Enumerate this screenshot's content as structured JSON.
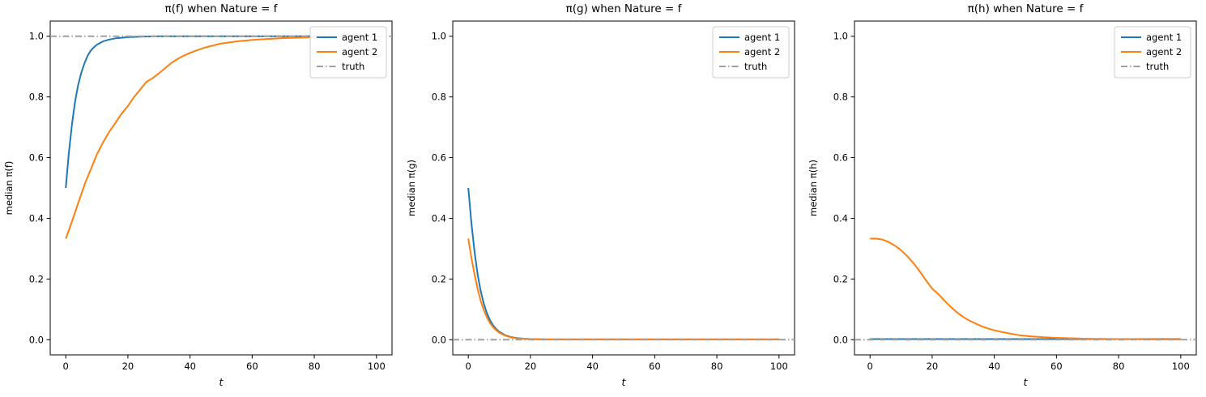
{
  "figure": {
    "background": "#ffffff",
    "axis_color": "#000000",
    "legend_border_color": "#cccccc",
    "legend_background": "#ffffff"
  },
  "chart_data": [
    {
      "type": "line",
      "title": "π(f) when Nature = f",
      "xlabel": "t",
      "ylabel": "median π(f)",
      "xlim": [
        -5,
        105
      ],
      "ylim": [
        -0.05,
        1.05
      ],
      "xticks": [
        0,
        20,
        40,
        60,
        80,
        100
      ],
      "xticklabels": [
        "0",
        "20",
        "40",
        "60",
        "80",
        "100"
      ],
      "yticks": [
        0.0,
        0.2,
        0.4,
        0.6,
        0.8,
        1.0
      ],
      "yticklabels": [
        "0.0",
        "0.2",
        "0.4",
        "0.6",
        "0.8",
        "1.0"
      ],
      "grid": false,
      "legend": {
        "position": "upper right",
        "entries": [
          "agent 1",
          "agent 2",
          "truth"
        ]
      },
      "series": [
        {
          "name": "agent 1",
          "color": "#1f77b4",
          "dash": "",
          "x": [
            0,
            1,
            2,
            3,
            4,
            5,
            6,
            7,
            8,
            9,
            10,
            12,
            14,
            16,
            18,
            20,
            25,
            30,
            40,
            50,
            60,
            70,
            80,
            90,
            100
          ],
          "y": [
            0.5,
            0.615,
            0.71,
            0.785,
            0.84,
            0.88,
            0.91,
            0.935,
            0.952,
            0.963,
            0.972,
            0.983,
            0.989,
            0.993,
            0.995,
            0.997,
            0.999,
            1.0,
            1.0,
            1.0,
            1.0,
            1.0,
            1.0,
            1.0,
            1.0
          ]
        },
        {
          "name": "agent 2",
          "color": "#ff7f0e",
          "dash": "",
          "x": [
            0,
            1,
            2,
            3,
            4,
            5,
            6,
            7,
            8,
            9,
            10,
            12,
            14,
            16,
            18,
            20,
            22,
            24,
            26,
            28,
            30,
            32,
            34,
            36,
            38,
            40,
            42,
            44,
            46,
            48,
            50,
            55,
            60,
            65,
            70,
            80,
            90,
            100
          ],
          "y": [
            0.333,
            0.36,
            0.39,
            0.42,
            0.45,
            0.48,
            0.51,
            0.535,
            0.56,
            0.585,
            0.61,
            0.65,
            0.685,
            0.715,
            0.745,
            0.77,
            0.8,
            0.825,
            0.85,
            0.862,
            0.878,
            0.895,
            0.912,
            0.925,
            0.936,
            0.945,
            0.953,
            0.96,
            0.966,
            0.971,
            0.976,
            0.983,
            0.988,
            0.991,
            0.994,
            0.997,
            0.999,
            1.0
          ]
        },
        {
          "name": "truth",
          "color": "#a0a0a0",
          "dash": "8 3 1.5 3",
          "x": [
            -5,
            105
          ],
          "y": [
            1.0,
            1.0
          ]
        }
      ]
    },
    {
      "type": "line",
      "title": "π(g) when Nature = f",
      "xlabel": "t",
      "ylabel": "median π(g)",
      "xlim": [
        -5,
        105
      ],
      "ylim": [
        -0.05,
        1.05
      ],
      "xticks": [
        0,
        20,
        40,
        60,
        80,
        100
      ],
      "xticklabels": [
        "0",
        "20",
        "40",
        "60",
        "80",
        "100"
      ],
      "yticks": [
        0.0,
        0.2,
        0.4,
        0.6,
        0.8,
        1.0
      ],
      "yticklabels": [
        "0.0",
        "0.2",
        "0.4",
        "0.6",
        "0.8",
        "1.0"
      ],
      "grid": false,
      "legend": {
        "position": "upper right",
        "entries": [
          "agent 1",
          "agent 2",
          "truth"
        ]
      },
      "series": [
        {
          "name": "agent 1",
          "color": "#1f77b4",
          "dash": "",
          "x": [
            0,
            1,
            2,
            3,
            4,
            5,
            6,
            7,
            8,
            9,
            10,
            12,
            14,
            16,
            18,
            20,
            25,
            30,
            40,
            50,
            60,
            70,
            80,
            90,
            100
          ],
          "y": [
            0.5,
            0.385,
            0.29,
            0.215,
            0.16,
            0.118,
            0.087,
            0.064,
            0.047,
            0.035,
            0.026,
            0.014,
            0.008,
            0.005,
            0.003,
            0.002,
            0.001,
            0.001,
            0.001,
            0.001,
            0.001,
            0.001,
            0.001,
            0.001,
            0.001
          ]
        },
        {
          "name": "agent 2",
          "color": "#ff7f0e",
          "dash": "",
          "x": [
            0,
            1,
            2,
            3,
            4,
            5,
            6,
            7,
            8,
            9,
            10,
            12,
            14,
            16,
            18,
            20,
            25,
            30,
            40,
            50,
            60,
            70,
            80,
            90,
            100
          ],
          "y": [
            0.333,
            0.27,
            0.215,
            0.167,
            0.128,
            0.097,
            0.073,
            0.055,
            0.041,
            0.031,
            0.023,
            0.013,
            0.007,
            0.004,
            0.003,
            0.002,
            0.001,
            0.001,
            0.001,
            0.001,
            0.001,
            0.001,
            0.001,
            0.001,
            0.001
          ]
        },
        {
          "name": "truth",
          "color": "#a0a0a0",
          "dash": "8 3 1.5 3",
          "x": [
            -5,
            105
          ],
          "y": [
            0.0,
            0.0
          ]
        }
      ]
    },
    {
      "type": "line",
      "title": "π(h) when Nature = f",
      "xlabel": "t",
      "ylabel": "median π(h)",
      "xlim": [
        -5,
        105
      ],
      "ylim": [
        -0.05,
        1.05
      ],
      "xticks": [
        0,
        20,
        40,
        60,
        80,
        100
      ],
      "xticklabels": [
        "0",
        "20",
        "40",
        "60",
        "80",
        "100"
      ],
      "yticks": [
        0.0,
        0.2,
        0.4,
        0.6,
        0.8,
        1.0
      ],
      "yticklabels": [
        "0.0",
        "0.2",
        "0.4",
        "0.6",
        "0.8",
        "1.0"
      ],
      "grid": false,
      "legend": {
        "position": "upper right",
        "entries": [
          "agent 1",
          "agent 2",
          "truth"
        ]
      },
      "series": [
        {
          "name": "agent 1",
          "color": "#1f77b4",
          "dash": "",
          "x": [
            0,
            100
          ],
          "y": [
            0.002,
            0.002
          ]
        },
        {
          "name": "agent 2",
          "color": "#ff7f0e",
          "dash": "",
          "x": [
            0,
            2,
            4,
            6,
            8,
            10,
            12,
            14,
            16,
            18,
            20,
            22,
            24,
            26,
            28,
            30,
            32,
            34,
            36,
            38,
            40,
            44,
            48,
            52,
            56,
            60,
            70,
            80,
            90,
            100
          ],
          "y": [
            0.333,
            0.333,
            0.33,
            0.322,
            0.31,
            0.295,
            0.275,
            0.252,
            0.225,
            0.196,
            0.168,
            0.15,
            0.128,
            0.108,
            0.09,
            0.075,
            0.063,
            0.053,
            0.044,
            0.037,
            0.031,
            0.022,
            0.015,
            0.011,
            0.008,
            0.006,
            0.003,
            0.002,
            0.001,
            0.001
          ]
        },
        {
          "name": "truth",
          "color": "#a0a0a0",
          "dash": "8 3 1.5 3",
          "x": [
            -5,
            105
          ],
          "y": [
            0.0,
            0.0
          ]
        }
      ]
    }
  ]
}
